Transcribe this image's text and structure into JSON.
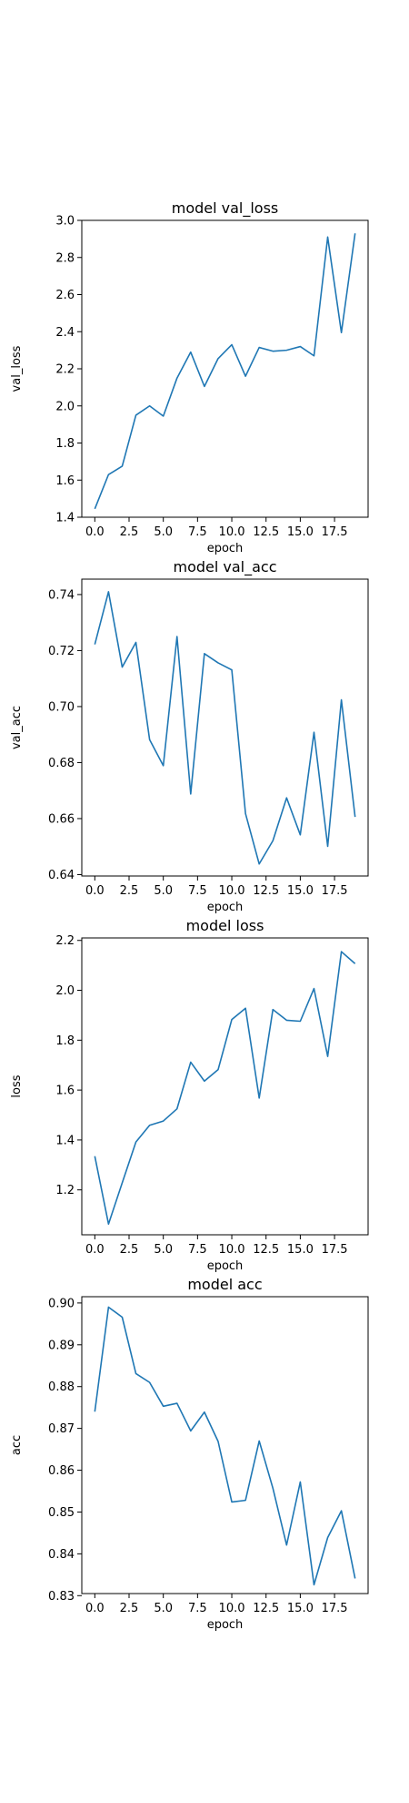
{
  "figure": {
    "background": "#ffffff",
    "line_color": "#1f77b4"
  },
  "chart_data": [
    {
      "type": "line",
      "title": "model val_loss",
      "xlabel": "epoch",
      "ylabel": "val_loss",
      "xlim": [
        -0.95,
        19.95
      ],
      "ylim": [
        1.4,
        3.0
      ],
      "x_ticks": [
        0,
        2.5,
        5,
        7.5,
        10,
        12.5,
        15,
        17.5
      ],
      "x_tick_labels": [
        "0.0",
        "2.5",
        "5.0",
        "7.5",
        "10.0",
        "12.5",
        "15.0",
        "17.5"
      ],
      "y_ticks": [
        1.4,
        1.6,
        1.8,
        2.0,
        2.2,
        2.4,
        2.6,
        2.8,
        3.0
      ],
      "y_tick_labels": [
        "1.4",
        "1.6",
        "1.8",
        "2.0",
        "2.2",
        "2.4",
        "2.6",
        "2.8",
        "3.0"
      ],
      "grid": false,
      "x": [
        0,
        1,
        2,
        3,
        4,
        5,
        6,
        7,
        8,
        9,
        10,
        11,
        12,
        13,
        14,
        15,
        16,
        17,
        18,
        19
      ],
      "series": [
        {
          "values": [
            1.445,
            1.63,
            1.675,
            1.95,
            2.0,
            1.945,
            2.15,
            2.29,
            2.105,
            2.255,
            2.33,
            2.16,
            2.315,
            2.295,
            2.3,
            2.32,
            2.27,
            2.91,
            2.395,
            2.93
          ]
        }
      ]
    },
    {
      "type": "line",
      "title": "model val_acc",
      "xlabel": "epoch",
      "ylabel": "val_acc",
      "xlim": [
        -0.95,
        19.95
      ],
      "ylim": [
        0.6395,
        0.7455
      ],
      "x_ticks": [
        0,
        2.5,
        5,
        7.5,
        10,
        12.5,
        15,
        17.5
      ],
      "x_tick_labels": [
        "0.0",
        "2.5",
        "5.0",
        "7.5",
        "10.0",
        "12.5",
        "15.0",
        "17.5"
      ],
      "y_ticks": [
        0.64,
        0.66,
        0.68,
        0.7,
        0.72,
        0.74
      ],
      "y_tick_labels": [
        "0.64",
        "0.66",
        "0.68",
        "0.70",
        "0.72",
        "0.74"
      ],
      "grid": false,
      "x": [
        0,
        1,
        2,
        3,
        4,
        5,
        6,
        7,
        8,
        9,
        10,
        11,
        12,
        13,
        14,
        15,
        16,
        17,
        18,
        19
      ],
      "series": [
        {
          "values": [
            0.7222,
            0.741,
            0.7141,
            0.7229,
            0.6882,
            0.6789,
            0.725,
            0.6688,
            0.7189,
            0.7156,
            0.7131,
            0.6618,
            0.6438,
            0.6521,
            0.6674,
            0.6542,
            0.6908,
            0.6501,
            0.7024,
            0.6606
          ]
        }
      ]
    },
    {
      "type": "line",
      "title": "model loss",
      "xlabel": "epoch",
      "ylabel": "loss",
      "xlim": [
        -0.95,
        19.95
      ],
      "ylim": [
        1.02,
        2.21
      ],
      "x_ticks": [
        0,
        2.5,
        5,
        7.5,
        10,
        12.5,
        15,
        17.5
      ],
      "x_tick_labels": [
        "0.0",
        "2.5",
        "5.0",
        "7.5",
        "10.0",
        "12.5",
        "15.0",
        "17.5"
      ],
      "y_ticks": [
        1.2,
        1.4,
        1.6,
        1.8,
        2.0,
        2.2
      ],
      "y_tick_labels": [
        "1.2",
        "1.4",
        "1.6",
        "1.8",
        "2.0",
        "2.2"
      ],
      "grid": false,
      "x": [
        0,
        1,
        2,
        3,
        4,
        5,
        6,
        7,
        8,
        9,
        10,
        11,
        12,
        13,
        14,
        15,
        16,
        17,
        18,
        19
      ],
      "series": [
        {
          "values": [
            1.335,
            1.063,
            1.228,
            1.392,
            1.459,
            1.476,
            1.525,
            1.712,
            1.636,
            1.682,
            1.883,
            1.928,
            1.568,
            1.923,
            1.88,
            1.876,
            2.007,
            1.735,
            2.155,
            2.107
          ]
        }
      ]
    },
    {
      "type": "line",
      "title": "model acc",
      "xlabel": "epoch",
      "ylabel": "acc",
      "xlim": [
        -0.95,
        19.95
      ],
      "ylim": [
        0.8305,
        0.9015
      ],
      "x_ticks": [
        0,
        2.5,
        5,
        7.5,
        10,
        12.5,
        15,
        17.5
      ],
      "x_tick_labels": [
        "0.0",
        "2.5",
        "5.0",
        "7.5",
        "10.0",
        "12.5",
        "15.0",
        "17.5"
      ],
      "y_ticks": [
        0.83,
        0.84,
        0.85,
        0.86,
        0.87,
        0.88,
        0.89,
        0.9
      ],
      "y_tick_labels": [
        "0.83",
        "0.84",
        "0.85",
        "0.86",
        "0.87",
        "0.88",
        "0.89",
        "0.90"
      ],
      "grid": false,
      "x": [
        0,
        1,
        2,
        3,
        4,
        5,
        6,
        7,
        8,
        9,
        10,
        11,
        12,
        13,
        14,
        15,
        16,
        17,
        18,
        19
      ],
      "series": [
        {
          "values": [
            0.874,
            0.899,
            0.8966,
            0.8831,
            0.881,
            0.8753,
            0.876,
            0.8694,
            0.8739,
            0.8669,
            0.8524,
            0.8528,
            0.867,
            0.8557,
            0.8421,
            0.8572,
            0.8326,
            0.8439,
            0.8503,
            0.8341
          ]
        }
      ]
    }
  ]
}
